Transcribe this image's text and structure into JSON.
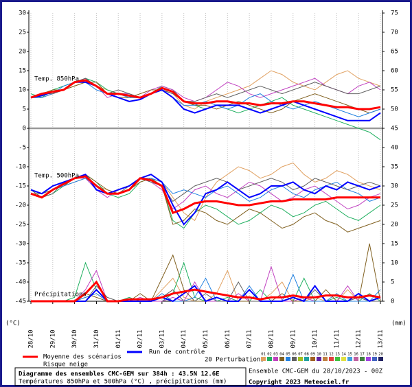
{
  "chart_data": {
    "type": "line",
    "annotations": [
      "Temp. 850hPa",
      "Temp. 500hPa",
      "Précipitations"
    ],
    "y_unit": "(°C)",
    "y2_unit": "(mm)",
    "xlim": [
      0,
      16
    ],
    "xticks": [
      {
        "value": 0,
        "label": "28/10"
      },
      {
        "value": 1,
        "label": "29/10"
      },
      {
        "value": 2,
        "label": "30/10"
      },
      {
        "value": 3,
        "label": "31/10"
      },
      {
        "value": 4,
        "label": "01/11"
      },
      {
        "value": 5,
        "label": "02/11"
      },
      {
        "value": 6,
        "label": "03/11"
      },
      {
        "value": 7,
        "label": "04/11"
      },
      {
        "value": 8,
        "label": "05/11"
      },
      {
        "value": 9,
        "label": "06/11"
      },
      {
        "value": 10,
        "label": "07/11"
      },
      {
        "value": 11,
        "label": "08/11"
      },
      {
        "value": 12,
        "label": "09/11"
      },
      {
        "value": 13,
        "label": "10/11"
      },
      {
        "value": 14,
        "label": "11/11"
      },
      {
        "value": 15,
        "label": "12/11"
      },
      {
        "value": 16,
        "label": "13/11"
      }
    ],
    "ylim": [
      -45,
      30
    ],
    "yticks": [
      -45,
      -40,
      -35,
      -30,
      -25,
      -20,
      -15,
      -10,
      -5,
      0,
      5,
      10,
      15,
      20,
      25,
      30
    ],
    "y2lim": [
      0,
      75
    ],
    "y2ticks": [
      0,
      5,
      10,
      15,
      20,
      25,
      30,
      35,
      40,
      45,
      50,
      55,
      60,
      65,
      70,
      75
    ],
    "grid": true,
    "x": [
      0,
      0.5,
      1,
      1.5,
      2,
      2.5,
      3,
      3.5,
      4,
      4.5,
      5,
      5.5,
      6,
      6.5,
      7,
      7.5,
      8,
      8.5,
      9,
      9.5,
      10,
      10.5,
      11,
      11.5,
      12,
      12.5,
      13,
      13.5,
      14,
      14.5,
      15,
      15.5,
      16
    ],
    "snow_label": "Risque neige",
    "perturbations_label": "20 Perturbations",
    "series": [
      {
        "name": "Moyenne des scénarios",
        "color": "#ff0000",
        "t850": [
          8,
          9,
          9.5,
          10,
          12,
          12.5,
          11,
          9,
          9,
          8.5,
          8,
          9,
          10.5,
          9.5,
          7,
          6.5,
          6.5,
          7,
          7,
          6.5,
          6.5,
          6,
          6.5,
          6.5,
          7,
          7,
          6.5,
          6,
          5.5,
          5.5,
          5,
          5,
          5.5
        ],
        "t500": [
          -17,
          -18,
          -16,
          -14.5,
          -13,
          -12.5,
          -15,
          -17,
          -17,
          -16,
          -13,
          -13.5,
          -15,
          -22,
          -21,
          -19.5,
          -19,
          -19,
          -19.5,
          -20,
          -20,
          -19.5,
          -19,
          -19,
          -18.5,
          -18.5,
          -18.5,
          -18.5,
          -18,
          -18,
          -18,
          -18,
          -18
        ],
        "precip": [
          0,
          0,
          0,
          0,
          0,
          2,
          5,
          0,
          0,
          0.5,
          0.5,
          0.5,
          1,
          2,
          2.5,
          3,
          2.5,
          2,
          1.5,
          1,
          1,
          0.5,
          1,
          1,
          1.5,
          1,
          1,
          1.5,
          1.5,
          1,
          1,
          1.5,
          1
        ]
      },
      {
        "name": "Run de contrôle",
        "color": "#0000ff",
        "t850": [
          8,
          8.5,
          9.5,
          10,
          12,
          12,
          11,
          9,
          8,
          7,
          7.5,
          9,
          10,
          8,
          5,
          4,
          5,
          6,
          6,
          6,
          5,
          4,
          5,
          6,
          7,
          6,
          5,
          4,
          3,
          2,
          2,
          2,
          4
        ],
        "t500": [
          -16,
          -17,
          -15,
          -14,
          -13,
          -12,
          -16,
          -17,
          -16,
          -15,
          -13,
          -12,
          -14,
          -20,
          -25,
          -22,
          -17,
          -16,
          -14,
          -16,
          -18,
          -17,
          -15,
          -15,
          -14,
          -16,
          -17,
          -15,
          -16,
          -14,
          -15,
          -16,
          -15
        ],
        "precip": [
          0,
          0,
          0,
          0,
          0,
          0,
          3,
          0,
          0,
          0,
          0,
          0,
          1,
          0,
          2,
          4,
          0,
          1,
          0,
          0,
          3,
          0,
          0,
          0,
          1,
          0,
          4,
          0,
          0,
          0,
          2,
          0,
          1
        ]
      },
      {
        "name": "01",
        "color": "#e0a060",
        "t850": [
          8,
          8,
          9,
          10,
          11,
          12,
          11,
          10,
          9,
          8,
          8,
          9,
          10,
          9,
          6,
          5,
          7,
          8,
          9,
          10,
          11,
          13,
          15,
          14,
          12,
          11,
          10,
          12,
          14,
          15,
          13,
          12,
          11
        ],
        "t500": [
          -17,
          -18,
          -16,
          -15,
          -14,
          -13,
          -15,
          -16,
          -17,
          -16,
          -14,
          -13,
          -14,
          -18,
          -22,
          -24,
          -18,
          -14,
          -12,
          -10,
          -11,
          -13,
          -12,
          -10,
          -9,
          -12,
          -14,
          -13,
          -11,
          -12,
          -14,
          -15,
          -16
        ],
        "precip": [
          0,
          0,
          0,
          0,
          0,
          1,
          2,
          0,
          0,
          0,
          0,
          0,
          3,
          6,
          1,
          0,
          0,
          2,
          8,
          0,
          0,
          0,
          2,
          5,
          0,
          0,
          1,
          0,
          0,
          3,
          0,
          0,
          1
        ]
      },
      {
        "name": "02",
        "color": "#20b060",
        "t850": [
          9,
          8,
          10,
          11,
          12,
          13,
          12,
          10,
          9,
          9,
          8,
          9,
          11,
          10,
          7,
          6,
          5,
          6,
          5,
          4,
          5,
          6,
          7,
          8,
          6,
          5,
          4,
          3,
          2,
          1,
          0,
          -1,
          -3
        ],
        "t500": [
          -16,
          -18,
          -17,
          -15,
          -13,
          -12,
          -14,
          -17,
          -18,
          -17,
          -14,
          -13,
          -15,
          -24,
          -26,
          -22,
          -20,
          -21,
          -23,
          -25,
          -24,
          -22,
          -20,
          -21,
          -23,
          -22,
          -20,
          -19,
          -21,
          -23,
          -24,
          -22,
          -20
        ],
        "precip": [
          0,
          0,
          0,
          0,
          1,
          10,
          3,
          0,
          0,
          1,
          0,
          0,
          0,
          2,
          10,
          1,
          0,
          0,
          1,
          0,
          0,
          3,
          0,
          0,
          0,
          6,
          0,
          0,
          1,
          0,
          0,
          2,
          0
        ]
      },
      {
        "name": "03",
        "color": "#c040c0",
        "t850": [
          8,
          9,
          9,
          10,
          12,
          13,
          11,
          8,
          9,
          9,
          8,
          10,
          11,
          10,
          8,
          7,
          8,
          10,
          12,
          11,
          9,
          8,
          9,
          10,
          11,
          12,
          13,
          11,
          10,
          9,
          11,
          12,
          10
        ],
        "t500": [
          -17,
          -18,
          -16,
          -14,
          -13,
          -13,
          -16,
          -18,
          -16,
          -15,
          -13,
          -14,
          -16,
          -21,
          -19,
          -16,
          -15,
          -17,
          -18,
          -16,
          -14,
          -15,
          -17,
          -19,
          -18,
          -16,
          -15,
          -17,
          -19,
          -21,
          -20,
          -18,
          -17
        ],
        "precip": [
          0,
          0,
          0,
          0,
          0,
          3,
          8,
          0,
          0,
          0,
          1,
          0,
          0,
          1,
          0,
          5,
          0,
          0,
          0,
          2,
          0,
          0,
          9,
          0,
          0,
          1,
          0,
          0,
          0,
          4,
          0,
          0,
          0
        ]
      },
      {
        "name": "04",
        "color": "#806020",
        "t850": [
          8,
          9,
          10,
          10,
          11,
          12,
          12,
          9,
          8,
          8,
          9,
          10,
          10,
          9,
          7,
          6,
          6,
          5,
          6,
          7,
          6,
          5,
          4,
          5,
          7,
          8,
          9,
          8,
          7,
          6,
          5,
          4,
          5
        ],
        "t500": [
          -17,
          -17,
          -16,
          -15,
          -13,
          -12,
          -14,
          -16,
          -17,
          -16,
          -14,
          -13,
          -15,
          -25,
          -24,
          -21,
          -22,
          -24,
          -25,
          -23,
          -21,
          -22,
          -24,
          -26,
          -25,
          -23,
          -22,
          -24,
          -25,
          -27,
          -26,
          -25,
          -24
        ],
        "precip": [
          0,
          0,
          0,
          0,
          0,
          2,
          1,
          0,
          0,
          0,
          2,
          0,
          6,
          12,
          3,
          0,
          0,
          1,
          0,
          0,
          0,
          0,
          0,
          2,
          0,
          0,
          0,
          3,
          0,
          0,
          0,
          15,
          0
        ]
      },
      {
        "name": "05",
        "color": "#2080e0",
        "t850": [
          8,
          8,
          9,
          11,
          12,
          12,
          10,
          9,
          9,
          8,
          8,
          9,
          10,
          8,
          6,
          6,
          7,
          6,
          5,
          6,
          8,
          9,
          7,
          6,
          5,
          6,
          7,
          6,
          5,
          4,
          3,
          4,
          5
        ],
        "t500": [
          -17,
          -18,
          -16,
          -15,
          -14,
          -13,
          -15,
          -17,
          -17,
          -16,
          -13,
          -13,
          -14,
          -17,
          -16,
          -17,
          -18,
          -16,
          -15,
          -17,
          -19,
          -18,
          -16,
          -15,
          -17,
          -18,
          -16,
          -15,
          -14,
          -16,
          -17,
          -19,
          -18
        ],
        "precip": [
          0,
          0,
          0,
          0,
          0,
          1,
          2,
          0,
          0,
          0,
          0,
          0,
          2,
          0,
          0,
          1,
          6,
          0,
          0,
          0,
          4,
          0,
          0,
          0,
          7,
          0,
          0,
          0,
          2,
          0,
          0,
          0,
          3
        ]
      },
      {
        "name": "06",
        "color": "#606060",
        "t850": [
          8,
          9,
          9,
          10,
          12,
          13,
          11,
          9,
          10,
          9,
          8,
          9,
          10,
          9,
          7,
          7,
          8,
          9,
          8,
          9,
          10,
          11,
          10,
          9,
          10,
          11,
          12,
          11,
          10,
          9,
          9,
          10,
          11
        ],
        "t500": [
          -16,
          -18,
          -17,
          -14,
          -13,
          -12,
          -15,
          -17,
          -17,
          -15,
          -13,
          -14,
          -15,
          -19,
          -17,
          -15,
          -14,
          -13,
          -14,
          -16,
          -15,
          -14,
          -13,
          -14,
          -16,
          -15,
          -13,
          -14,
          -15,
          -16,
          -15,
          -14,
          -15
        ],
        "precip": [
          0,
          0,
          0,
          0,
          0,
          0,
          4,
          1,
          0,
          0,
          0,
          0,
          1,
          3,
          0,
          0,
          2,
          0,
          0,
          5,
          0,
          0,
          0,
          0,
          1,
          0,
          3,
          0,
          0,
          0,
          1,
          0,
          0
        ]
      },
      {
        "name": "07",
        "color": "#a0c020"
      },
      {
        "name": "08",
        "color": "#20a0a0"
      },
      {
        "name": "09",
        "color": "#a06020"
      },
      {
        "name": "10",
        "color": "#6020a0"
      },
      {
        "name": "11",
        "color": "#c08040"
      },
      {
        "name": "12",
        "color": "#e04040"
      },
      {
        "name": "13",
        "color": "#40c040"
      },
      {
        "name": "14",
        "color": "#e0e040"
      },
      {
        "name": "15",
        "color": "#40a0e0"
      },
      {
        "name": "16",
        "color": "#c060a0"
      },
      {
        "name": "17",
        "color": "#408040"
      },
      {
        "name": "18",
        "color": "#a040e0"
      },
      {
        "name": "19",
        "color": "#4060c0"
      },
      {
        "name": "20",
        "color": "#202060"
      }
    ],
    "footer": {
      "title": "Diagramme des ensembles CMC-GEM sur 384h : 43.5N 12.6E",
      "subtitle": "Températures 850hPa et 500hPa (°C) , précipitations (mm)",
      "run": "Ensemble CMC-GEM du 28/10/2023 - 00Z",
      "copyright": "Copyright 2023 Meteociel.fr"
    }
  }
}
